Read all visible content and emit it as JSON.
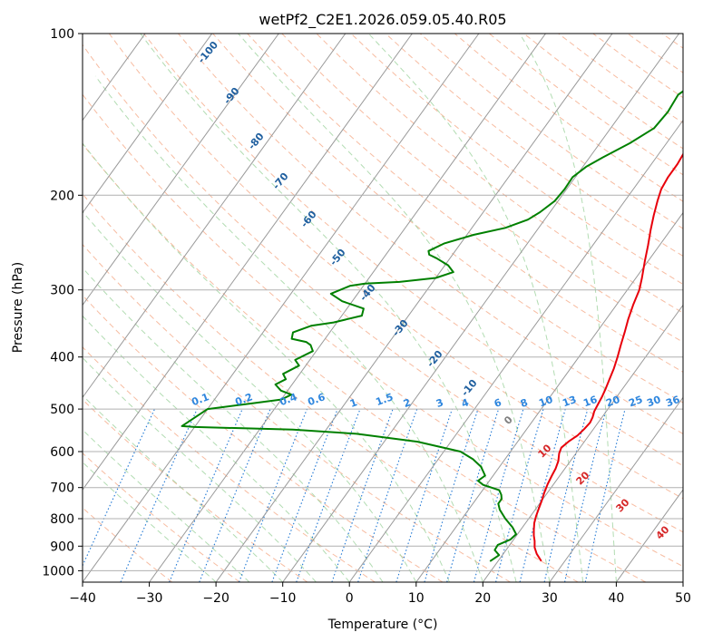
{
  "chart_data": {
    "type": "line",
    "title": "wetPf2_C2E1.2026.059.05.40.R05",
    "xlabel": "Temperature (°C)",
    "ylabel": "Pressure (hPa)",
    "xlim": [
      -40,
      50
    ],
    "ylim": [
      1050,
      100
    ],
    "y_scale": "log",
    "x_ticks": [
      -40,
      -30,
      -20,
      -10,
      0,
      10,
      20,
      30,
      40,
      50
    ],
    "y_ticks": [
      100,
      200,
      300,
      400,
      500,
      600,
      700,
      800,
      900,
      1000
    ],
    "grid": true,
    "colors": {
      "temperature": "#e8000b",
      "dewpoint": "#008000",
      "dry_adiabat": "#f4a582",
      "moist_adiabat": "#9fd39f",
      "mixing_ratio": "#1f77d4",
      "isotherm": "#999999",
      "isotherm_label": "#1f5f9f",
      "mixing_label": "#2e86de",
      "red_label": "#d62728",
      "grid": "#b0b0b0"
    },
    "series": [
      {
        "id": "temperature",
        "points": [
          [
            26.5,
            960
          ],
          [
            25.0,
            930
          ],
          [
            24.0,
            905
          ],
          [
            23.3,
            880
          ],
          [
            22.6,
            860
          ],
          [
            22.0,
            840
          ],
          [
            21.3,
            815
          ],
          [
            20.8,
            790
          ],
          [
            20.4,
            765
          ],
          [
            20.0,
            740
          ],
          [
            19.5,
            715
          ],
          [
            19.1,
            690
          ],
          [
            18.8,
            665
          ],
          [
            18.6,
            645
          ],
          [
            18.2,
            625
          ],
          [
            17.5,
            605
          ],
          [
            17.2,
            590
          ],
          [
            17.6,
            575
          ],
          [
            18.3,
            560
          ],
          [
            18.6,
            545
          ],
          [
            18.8,
            530
          ],
          [
            18.6,
            518
          ],
          [
            18.2,
            505
          ],
          [
            18.0,
            490
          ],
          [
            17.8,
            475
          ],
          [
            17.5,
            460
          ],
          [
            17.0,
            440
          ],
          [
            16.5,
            420
          ],
          [
            15.8,
            400
          ],
          [
            15.0,
            380
          ],
          [
            14.2,
            360
          ],
          [
            13.3,
            340
          ],
          [
            12.5,
            320
          ],
          [
            11.8,
            300
          ],
          [
            10.9,
            285
          ],
          [
            9.5,
            265
          ],
          [
            8.3,
            248
          ],
          [
            7.0,
            232
          ],
          [
            5.9,
            218
          ],
          [
            4.9,
            205
          ],
          [
            4.2,
            195
          ],
          [
            3.9,
            185
          ],
          [
            3.9,
            175
          ],
          [
            3.6,
            165
          ],
          [
            2.9,
            155
          ],
          [
            2.2,
            147
          ],
          [
            1.9,
            140
          ],
          [
            2.2,
            133
          ],
          [
            2.9,
            126
          ],
          [
            4.0,
            119
          ],
          [
            5.0,
            113
          ],
          [
            5.8,
            108
          ],
          [
            6.3,
            104
          ],
          [
            6.8,
            100
          ]
        ]
      },
      {
        "id": "dewpoint",
        "points": [
          [
            18.8,
            960
          ],
          [
            19.5,
            935
          ],
          [
            18.3,
            915
          ],
          [
            18.2,
            895
          ],
          [
            19.5,
            875
          ],
          [
            19.8,
            855
          ],
          [
            18.5,
            830
          ],
          [
            16.5,
            800
          ],
          [
            14.7,
            770
          ],
          [
            13.8,
            750
          ],
          [
            13.8,
            735
          ],
          [
            13.3,
            722
          ],
          [
            12.5,
            708
          ],
          [
            9.5,
            692
          ],
          [
            8.3,
            680
          ],
          [
            8.8,
            665
          ],
          [
            7.2,
            640
          ],
          [
            5.2,
            620
          ],
          [
            2.5,
            600
          ],
          [
            -5.0,
            575
          ],
          [
            -15.0,
            556
          ],
          [
            -25.0,
            546
          ],
          [
            -40.0,
            540
          ],
          [
            -42.0,
            538
          ],
          [
            -40.0,
            500
          ],
          [
            -34.0,
            488
          ],
          [
            -30.0,
            480
          ],
          [
            -29.0,
            470
          ],
          [
            -31.0,
            462
          ],
          [
            -32.5,
            450
          ],
          [
            -31.5,
            440
          ],
          [
            -32.5,
            430
          ],
          [
            -31.0,
            415
          ],
          [
            -32.2,
            405
          ],
          [
            -30.5,
            390
          ],
          [
            -31.5,
            380
          ],
          [
            -32.5,
            375
          ],
          [
            -35.0,
            370
          ],
          [
            -35.5,
            360
          ],
          [
            -33.5,
            350
          ],
          [
            -30.5,
            345
          ],
          [
            -27.0,
            335
          ],
          [
            -27.5,
            325
          ],
          [
            -31.5,
            315
          ],
          [
            -34.0,
            305
          ],
          [
            -32.0,
            295
          ],
          [
            -30.0,
            292
          ],
          [
            -25.0,
            290
          ],
          [
            -20.0,
            285
          ],
          [
            -18.0,
            278
          ],
          [
            -19.5,
            270
          ],
          [
            -22.0,
            262
          ],
          [
            -23.5,
            258
          ],
          [
            -24.0,
            254
          ],
          [
            -22.5,
            246
          ],
          [
            -19.0,
            237
          ],
          [
            -15.0,
            230
          ],
          [
            -12.5,
            222
          ],
          [
            -11.5,
            215
          ],
          [
            -10.5,
            205
          ],
          [
            -10.3,
            195
          ],
          [
            -10.4,
            185
          ],
          [
            -9.5,
            177
          ],
          [
            -8.0,
            170
          ],
          [
            -5.5,
            160
          ],
          [
            -3.5,
            150
          ],
          [
            -3.2,
            140
          ],
          [
            -3.5,
            130
          ],
          [
            -2.0,
            122
          ],
          [
            -0.5,
            114
          ],
          [
            0.8,
            107
          ],
          [
            2.0,
            100
          ]
        ]
      }
    ],
    "isotherm_labels": [
      "-100",
      "-90",
      "-80",
      "-70",
      "-60",
      "-50",
      "-40",
      "-30",
      "-20",
      "-10"
    ],
    "mixing_ratio_labels": [
      "0.1",
      "0.2",
      "0.4",
      "0.6",
      "1",
      "1.5",
      "2",
      "3",
      "4",
      "6",
      "8",
      "10",
      "13",
      "16",
      "20",
      "25",
      "30",
      "36"
    ],
    "isotherm_warm_labels": [
      "0",
      "10",
      "20",
      "30",
      "40"
    ]
  }
}
